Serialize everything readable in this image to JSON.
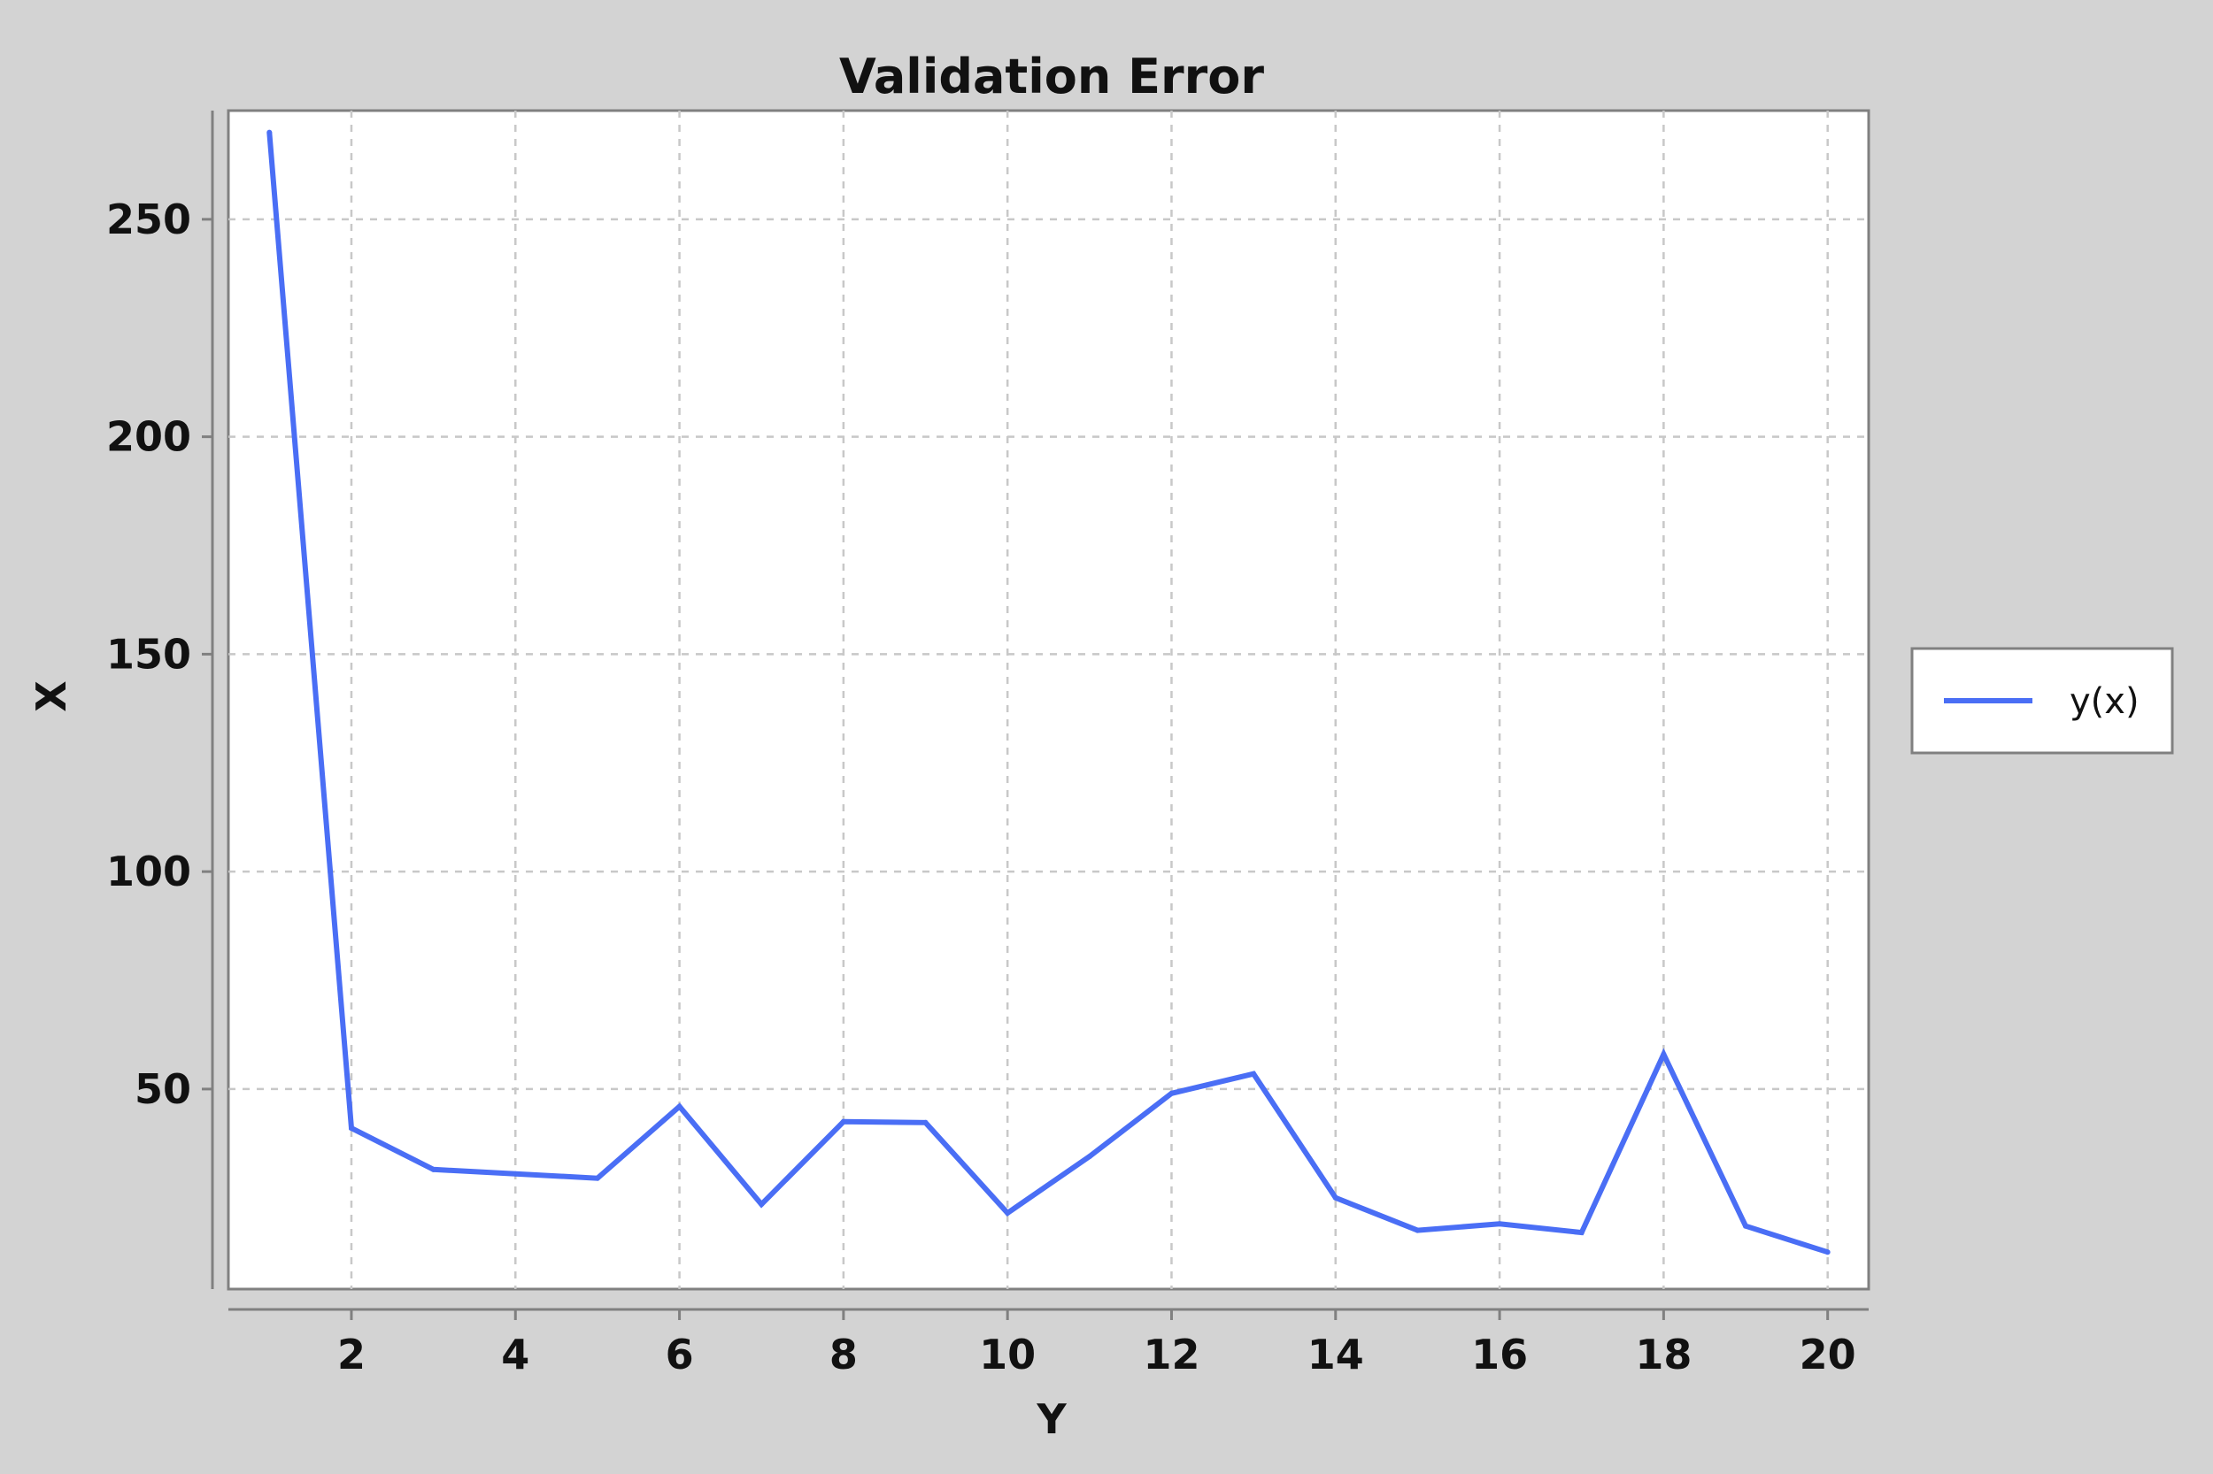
{
  "colors": {
    "background": "#d3d3d3",
    "plot_background": "#ffffff",
    "series": "#4a6ef5",
    "grid": "#c8c8c8",
    "frame": "#808080"
  },
  "chart_data": {
    "type": "line",
    "title": "Validation Error",
    "xlabel": "Y",
    "ylabel": "X",
    "xlim": [
      0.5,
      20.5
    ],
    "ylim": [
      4,
      275
    ],
    "xticks": [
      2,
      4,
      6,
      8,
      10,
      12,
      14,
      16,
      18,
      20
    ],
    "yticks": [
      50,
      100,
      150,
      200,
      250
    ],
    "grid": true,
    "legend_position": "right",
    "series": [
      {
        "name": "y(x)",
        "x": [
          1,
          2,
          3,
          4,
          5,
          6,
          7,
          8,
          9,
          10,
          11,
          12,
          13,
          14,
          15,
          16,
          17,
          18,
          19,
          20
        ],
        "values": [
          270,
          41,
          31.5,
          30.5,
          29.5,
          46,
          23.5,
          42.5,
          42.3,
          21.5,
          34.5,
          49,
          53.5,
          25,
          17.5,
          19,
          17,
          58,
          18.5,
          12.5
        ]
      }
    ]
  }
}
